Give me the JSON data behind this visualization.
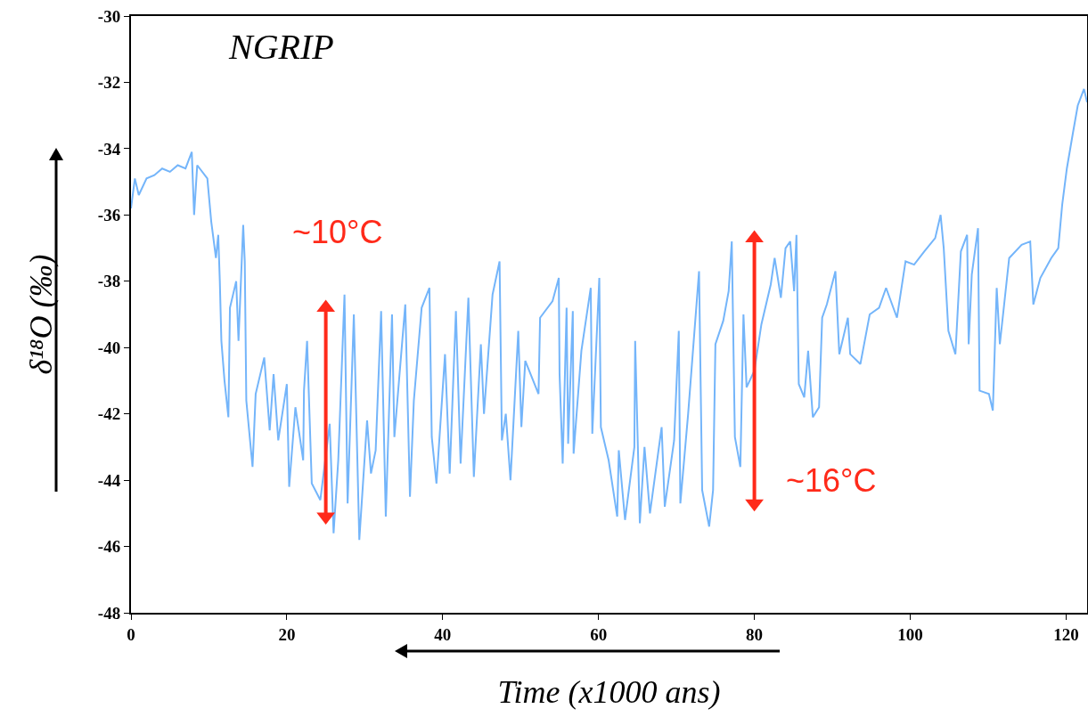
{
  "chart_data": {
    "type": "line",
    "xlabel": "Time (x1000 ans)",
    "ylabel": "δ¹⁸O (‰)",
    "annotations": [
      "NGRIP",
      {
        "text": "~10°C",
        "x": 25,
        "y": -38.8
      },
      {
        "text": "~16°C",
        "x": 80,
        "y": -44.7
      }
    ],
    "xlim": [
      0,
      122.7
    ],
    "xticks": [
      0,
      20,
      40,
      60,
      80,
      100,
      120
    ],
    "ylim": [
      -48,
      -30
    ],
    "yticks": [
      -48,
      -46,
      -44,
      -42,
      -40,
      -38,
      -36,
      -34,
      -32,
      -30
    ],
    "grid": false,
    "series": [
      {
        "color": "#74b5fa",
        "x": [
          0,
          0.5,
          1,
          2,
          3,
          4,
          5,
          6,
          7,
          7.8,
          8.1,
          8.5,
          9.8,
          10.3,
          10.9,
          11.2,
          11.4,
          11.6,
          12,
          12.5,
          12.7,
          13.5,
          13.8,
          14.4,
          14.6,
          14.8,
          15.6,
          16,
          17.1,
          17.8,
          18.3,
          18.9,
          20,
          20.3,
          21.1,
          22.1,
          22.2,
          22.6,
          23.2,
          24.3,
          25.5,
          26,
          26.6,
          27.4,
          27.8,
          28.6,
          29.3,
          30.3,
          30.8,
          31.4,
          32.1,
          32.7,
          33.5,
          33.8,
          35.2,
          35.8,
          36.3,
          37.3,
          38.3,
          38.6,
          39.2,
          40.3,
          40.9,
          41.7,
          42.3,
          43.3,
          44,
          44.9,
          45.3,
          46.4,
          47.3,
          47.6,
          48.1,
          48.7,
          49.7,
          50.1,
          50.6,
          52.3,
          52.5,
          54.1,
          54.9,
          55,
          55.4,
          55.9,
          56.1,
          56.7,
          56.8,
          57.8,
          59,
          59.2,
          60.1,
          60.3,
          61.3,
          62.4,
          62.6,
          63.4,
          64.6,
          64.7,
          65.3,
          65.9,
          66.6,
          68.1,
          68.5,
          69.7,
          70.3,
          70.5,
          71.5,
          72.9,
          73.3,
          74.2,
          74.7,
          75,
          76,
          76.7,
          77.1,
          77.5,
          78.2,
          78.6,
          79,
          80,
          80.9,
          82.1,
          82.6,
          83.4,
          84,
          84.6,
          85.1,
          85.4,
          85.7,
          86.4,
          86.9,
          87.5,
          88.3,
          88.7,
          89.3,
          90.4,
          90.9,
          92,
          92.3,
          93.6,
          94.8,
          96,
          96.9,
          98.3,
          99.4,
          100.5,
          101.8,
          103.2,
          103.9,
          104.3,
          104.9,
          105.8,
          106.5,
          107.3,
          107.5,
          107.9,
          108.7,
          108.9,
          110.1,
          110.6,
          111.1,
          111.5,
          112.7,
          114.3,
          115.4,
          115.8,
          116.7,
          118.1,
          119,
          119.5,
          120.1,
          120.9,
          121.5,
          122.3,
          122.7
        ],
        "values": [
          -35.8,
          -34.9,
          -35.4,
          -34.9,
          -34.8,
          -34.6,
          -34.7,
          -34.5,
          -34.6,
          -34.1,
          -36,
          -34.5,
          -34.9,
          -36.2,
          -37.3,
          -36.6,
          -38,
          -39.8,
          -41,
          -42.1,
          -38.8,
          -38,
          -39.8,
          -36.3,
          -37.4,
          -41.6,
          -43.6,
          -41.4,
          -40.3,
          -42.5,
          -40.8,
          -42.8,
          -41.1,
          -44.2,
          -41.8,
          -43.4,
          -41.3,
          -39.8,
          -44.1,
          -44.6,
          -42.3,
          -45.6,
          -43.4,
          -38.4,
          -44.7,
          -39,
          -45.8,
          -42.2,
          -43.8,
          -43.1,
          -38.9,
          -45.1,
          -39,
          -42.7,
          -38.7,
          -44.5,
          -41.6,
          -38.8,
          -38.2,
          -42.7,
          -44.1,
          -40.2,
          -43.8,
          -38.9,
          -43.5,
          -38.5,
          -43.9,
          -39.9,
          -42,
          -38.4,
          -37.4,
          -42.8,
          -42,
          -44,
          -39.5,
          -42.4,
          -40.4,
          -41.4,
          -39.1,
          -38.6,
          -37.9,
          -40.8,
          -43.5,
          -38.8,
          -42.9,
          -38.9,
          -43.2,
          -40.1,
          -38.2,
          -42.6,
          -37.9,
          -42.4,
          -43.4,
          -45.1,
          -43.1,
          -45.2,
          -43,
          -39.8,
          -45.3,
          -43,
          -45,
          -42.4,
          -44.8,
          -42.8,
          -39.5,
          -44.7,
          -42,
          -37.7,
          -44.3,
          -45.4,
          -44.3,
          -39.9,
          -39.2,
          -38.3,
          -36.8,
          -42.7,
          -43.6,
          -39,
          -41.2,
          -40.7,
          -39.3,
          -38.1,
          -37.3,
          -38.5,
          -37,
          -36.8,
          -38.3,
          -36.6,
          -41.1,
          -41.5,
          -40.1,
          -42.1,
          -41.8,
          -39.1,
          -38.7,
          -37.7,
          -40.2,
          -39.1,
          -40.2,
          -40.5,
          -39,
          -38.8,
          -38.2,
          -39.1,
          -37.4,
          -37.5,
          -37.1,
          -36.7,
          -36,
          -37,
          -39.5,
          -40.2,
          -37.1,
          -36.6,
          -39.9,
          -37.8,
          -36.4,
          -41.3,
          -41.4,
          -41.9,
          -38.2,
          -39.9,
          -37.3,
          -36.9,
          -36.8,
          -38.7,
          -37.9,
          -37.3,
          -37,
          -35.7,
          -34.6,
          -33.5,
          -32.7,
          -32.2,
          -32.6
        ]
      },
      {
        "color": "#ff2a1a",
        "marker": "triangle",
        "x": [
          25,
          25
        ],
        "values": [
          -38.8,
          -45.1
        ]
      },
      {
        "color": "#ff2a1a",
        "marker": "triangle",
        "x": [
          80,
          80
        ],
        "values": [
          -36.7,
          -44.7
        ]
      }
    ]
  }
}
